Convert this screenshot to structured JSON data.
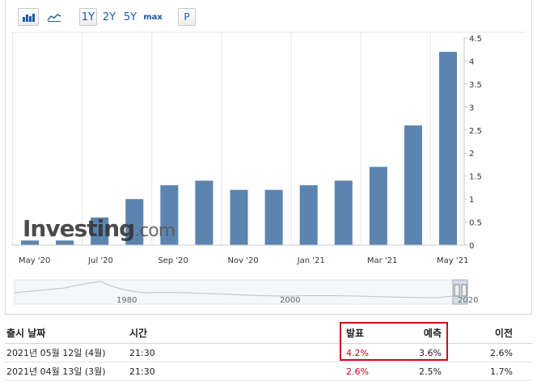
{
  "toolbar": {
    "bar_icon": "bar-chart-icon",
    "line_icon": "line-chart-icon",
    "ranges": [
      "1Y",
      "2Y",
      "5Y",
      "max"
    ],
    "active_range": "1Y",
    "p_label": "P"
  },
  "watermark": {
    "brand": "Investing",
    "suffix": ".com"
  },
  "chart_data": {
    "type": "bar",
    "categories": [
      "May '20",
      "Jun '20",
      "Jul '20",
      "Aug '20",
      "Sep '20",
      "Oct '20",
      "Nov '20",
      "Dec '20",
      "Jan '21",
      "Feb '21",
      "Mar '21",
      "Apr '21",
      "May '21"
    ],
    "values": [
      0.1,
      0.1,
      0.6,
      1.0,
      1.3,
      1.4,
      1.2,
      1.2,
      1.3,
      1.4,
      1.7,
      2.6,
      4.2
    ],
    "x_tick_labels": [
      "May '20",
      "Jul '20",
      "Sep '20",
      "Nov '20",
      "Jan '21",
      "Mar '21",
      "May '21"
    ],
    "y_ticks": [
      "0",
      "0.5",
      "1",
      "1.5",
      "2",
      "2.5",
      "3",
      "3.5",
      "4",
      "4.5"
    ],
    "ylim": [
      0,
      4.5
    ],
    "grid": "vertical",
    "color": "#5b84b1",
    "navigator_labels": [
      "1980",
      "2000",
      "2020"
    ]
  },
  "table": {
    "headers": {
      "date": "출시 날짜",
      "time": "시간",
      "actual": "발표",
      "forecast": "예측",
      "previous": "이전"
    },
    "rows": [
      {
        "date": "2021년 05월 12일 (4월)",
        "time": "21:30",
        "actual": "4.2%",
        "forecast": "3.6%",
        "previous": "2.6%"
      },
      {
        "date": "2021년 04월 13일 (3월)",
        "time": "21:30",
        "actual": "2.6%",
        "forecast": "2.5%",
        "previous": "1.7%"
      }
    ]
  },
  "colors": {
    "bar": "#5b84b1",
    "actual_red": "#d0021b",
    "link_blue": "#1e5aa8"
  }
}
